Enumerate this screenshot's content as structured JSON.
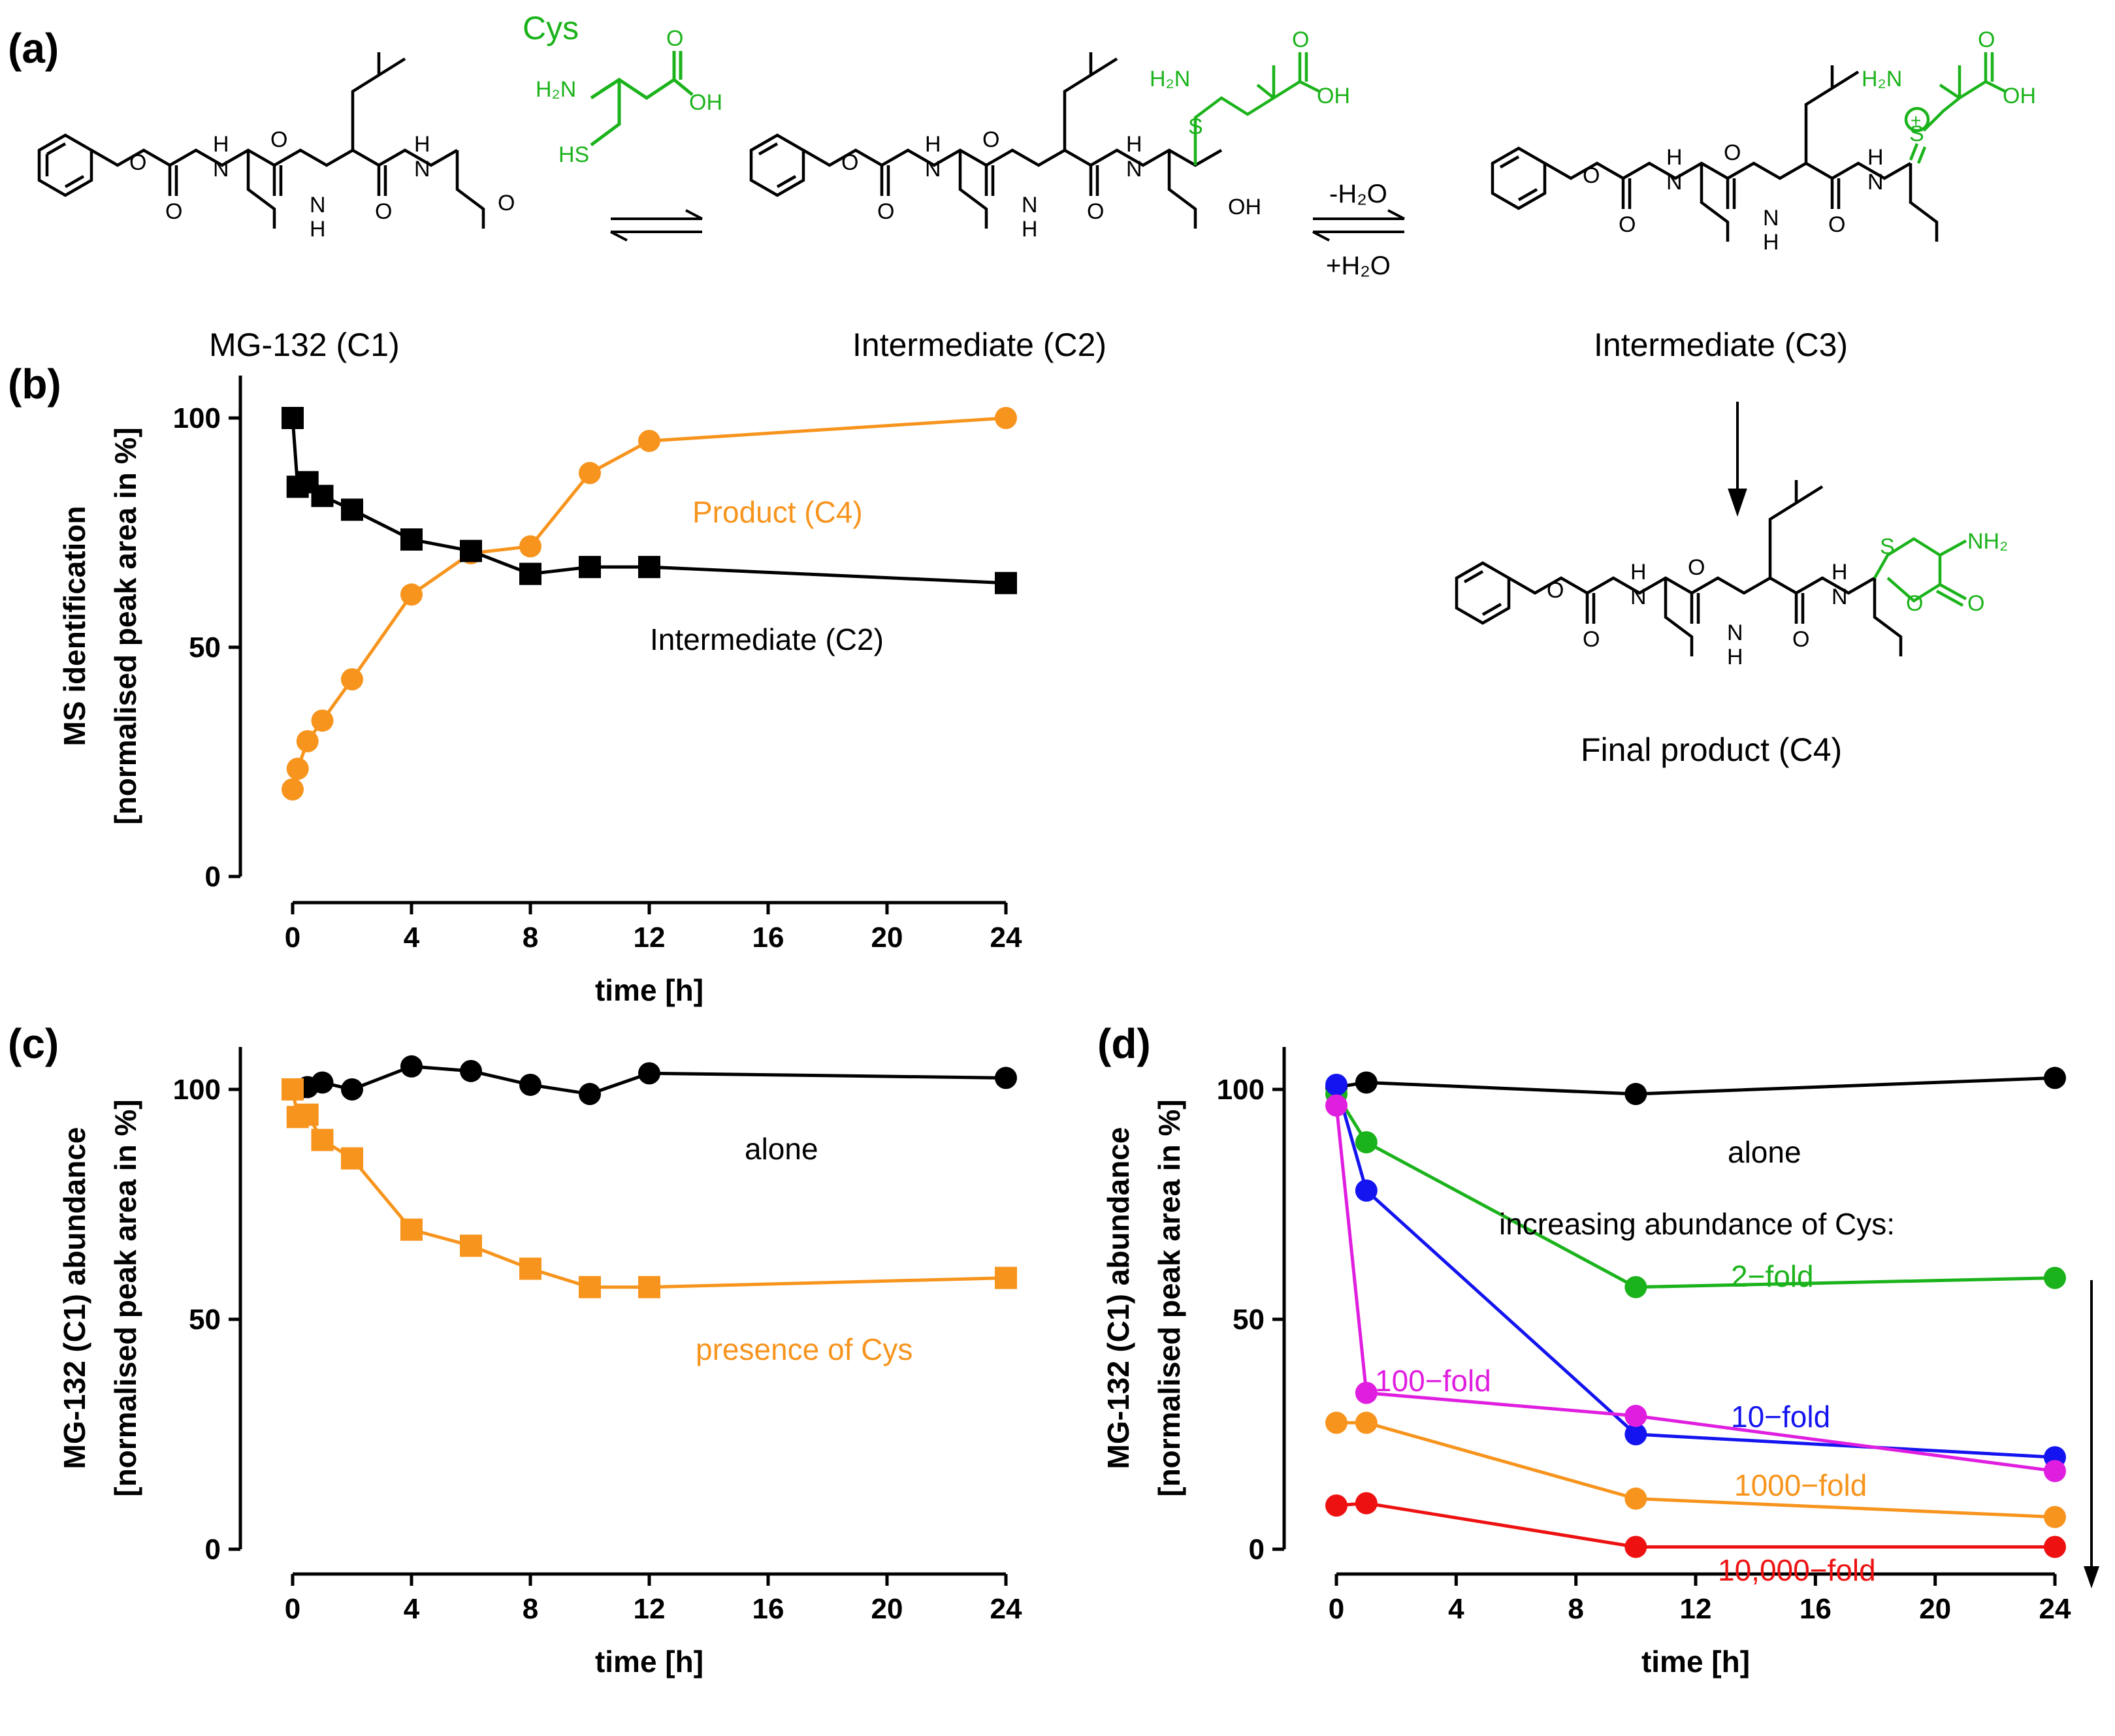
{
  "colors": {
    "black": "#000000",
    "orange": "#f7941d",
    "green": "#1bb31b",
    "blue": "#1414f0",
    "magenta": "#e01ee0",
    "red": "#ee1111"
  },
  "panel_a": {
    "label": "(a)",
    "cys_label": "Cys",
    "compounds": [
      "MG-132 (C1)",
      "Intermediate (C2)",
      "Intermediate (C3)",
      "Final product (C4)"
    ],
    "conditions": {
      "minus_water": "-H₂O",
      "plus_water": "+H₂O"
    },
    "atoms": {
      "H2N": "H₂N",
      "OH": "OH",
      "HS": "HS",
      "O": "O",
      "N": "N",
      "H": "H",
      "S": "S",
      "NH2": "NH₂",
      "plus": "+"
    }
  },
  "chart_data": [
    {
      "panel": "(b)",
      "type": "line",
      "xlabel": "time [h]",
      "ylabel_line1": "MS identification",
      "ylabel_line2": "[normalised peak area in %]",
      "xlim": [
        0,
        24
      ],
      "ylim": [
        0,
        110
      ],
      "xticks": [
        0,
        4,
        8,
        12,
        16,
        20,
        24
      ],
      "yticks": [
        0,
        50,
        100
      ],
      "series": [
        {
          "name": "Product (C4)",
          "color": "orange",
          "marker": "circle",
          "x": [
            0,
            0.17,
            0.5,
            1,
            2,
            4,
            6,
            8,
            10,
            12,
            24
          ],
          "y": [
            19,
            23.5,
            29.5,
            34,
            43,
            61.5,
            70.5,
            72,
            88,
            95,
            100
          ]
        },
        {
          "name": "Intermediate (C2)",
          "color": "black",
          "marker": "square",
          "x": [
            0,
            0.17,
            0.5,
            1,
            2,
            4,
            6,
            8,
            10,
            12,
            24
          ],
          "y": [
            100,
            85,
            86,
            83,
            80,
            73.5,
            71,
            66,
            67.5,
            67.5,
            64
          ]
        }
      ]
    },
    {
      "panel": "(c)",
      "type": "line",
      "xlabel": "time [h]",
      "ylabel_line1": "MG-132 (C1) abundance",
      "ylabel_line2": "[normalised peak area in %]",
      "xlim": [
        0,
        24
      ],
      "ylim": [
        0,
        110
      ],
      "xticks": [
        0,
        4,
        8,
        12,
        16,
        20,
        24
      ],
      "yticks": [
        0,
        50,
        100
      ],
      "series": [
        {
          "name": "alone",
          "color": "black",
          "marker": "circle",
          "x": [
            0,
            0.17,
            0.5,
            1,
            2,
            4,
            6,
            8,
            10,
            12,
            24
          ],
          "y": [
            100,
            100,
            100.5,
            101.5,
            100,
            105,
            104,
            101,
            99,
            103.5,
            102.5
          ]
        },
        {
          "name": "presence of Cys",
          "color": "orange",
          "marker": "square",
          "x": [
            0,
            0.17,
            0.5,
            1,
            2,
            4,
            6,
            8,
            10,
            12,
            24
          ],
          "y": [
            100,
            94,
            94.5,
            89,
            85,
            69.5,
            66,
            61,
            57,
            57,
            59
          ]
        }
      ]
    },
    {
      "panel": "(d)",
      "type": "line",
      "xlabel": "time [h]",
      "ylabel_line1": "MG-132 (C1) abundance",
      "ylabel_line2": "[normalised peak area in %]",
      "xlim": [
        0,
        24
      ],
      "ylim": [
        0,
        110
      ],
      "xticks": [
        0,
        4,
        8,
        12,
        16,
        20,
        24
      ],
      "yticks": [
        0,
        50,
        100
      ],
      "annotation": "increasing abundance of Cys:",
      "series": [
        {
          "name": "alone",
          "color": "black",
          "x": [
            0,
            1,
            10,
            24
          ],
          "y": [
            100.5,
            101.5,
            99,
            102.5
          ]
        },
        {
          "name": "2−fold",
          "color": "green",
          "x": [
            0,
            1,
            10,
            24
          ],
          "y": [
            99,
            88.5,
            57,
            59
          ]
        },
        {
          "name": "10−fold",
          "color": "blue",
          "x": [
            0,
            1,
            10,
            24
          ],
          "y": [
            101,
            78,
            25,
            20
          ]
        },
        {
          "name": "100−fold",
          "color": "magenta",
          "x": [
            0,
            1,
            10,
            24
          ],
          "y": [
            96.5,
            34,
            29,
            17
          ]
        },
        {
          "name": "1000−fold",
          "color": "orange",
          "x": [
            0,
            1,
            10,
            24
          ],
          "y": [
            27.5,
            27.5,
            11,
            7
          ]
        },
        {
          "name": "10,000−fold",
          "color": "red",
          "x": [
            0,
            1,
            10,
            24
          ],
          "y": [
            9.5,
            10,
            0.5,
            0.5
          ]
        }
      ]
    }
  ]
}
